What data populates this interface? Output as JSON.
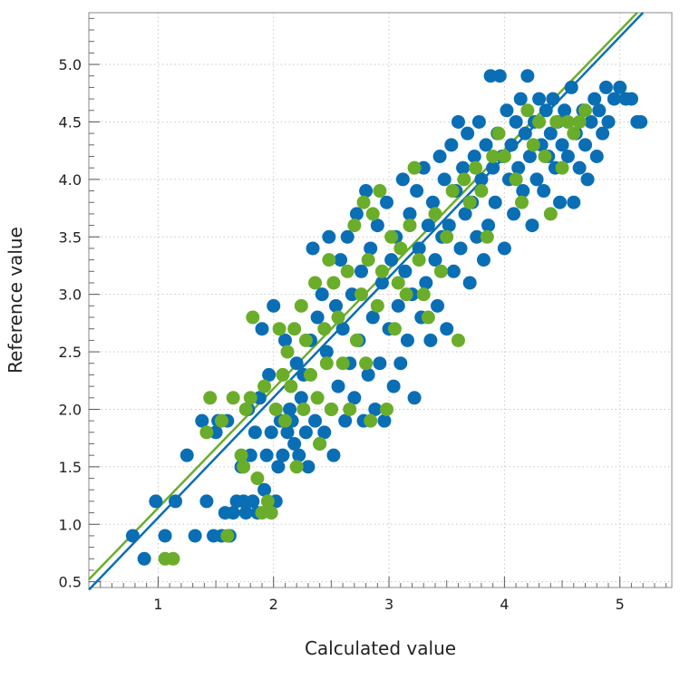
{
  "chart_data": {
    "type": "scatter",
    "title": "",
    "xlabel": "Calculated value",
    "ylabel": "Reference value",
    "xlim": [
      0.4,
      5.45
    ],
    "ylim": [
      0.45,
      5.45
    ],
    "xticks": [
      "1",
      "2",
      "3",
      "4",
      "5"
    ],
    "yticks": [
      "0.5",
      "1.0",
      "1.5",
      "2.0",
      "2.5",
      "3.0",
      "3.5",
      "4.0",
      "4.5",
      "5.0"
    ],
    "grid": true,
    "legend": "none",
    "colors": {
      "calibration": "#0a6eb5",
      "validation": "#6aad2a",
      "grid": "#c8c8c8",
      "frame": "#888888"
    },
    "fit_lines": [
      {
        "color": "#0a6eb5",
        "x": [
          0.4,
          5.2
        ],
        "y": [
          0.43,
          5.45
        ]
      },
      {
        "color": "#6aad2a",
        "x": [
          0.4,
          5.15
        ],
        "y": [
          0.52,
          5.45
        ]
      }
    ],
    "series": [
      {
        "color": "#0a6eb5",
        "points": [
          [
            0.78,
            0.9
          ],
          [
            0.88,
            0.7
          ],
          [
            0.98,
            1.2
          ],
          [
            1.06,
            0.9
          ],
          [
            1.15,
            1.2
          ],
          [
            1.25,
            1.6
          ],
          [
            1.32,
            0.9
          ],
          [
            1.38,
            1.9
          ],
          [
            1.42,
            1.2
          ],
          [
            1.48,
            0.9
          ],
          [
            1.5,
            1.8
          ],
          [
            1.52,
            1.9
          ],
          [
            1.55,
            0.9
          ],
          [
            1.58,
            1.1
          ],
          [
            1.6,
            1.9
          ],
          [
            1.62,
            0.9
          ],
          [
            1.65,
            1.1
          ],
          [
            1.68,
            1.2
          ],
          [
            1.72,
            1.5
          ],
          [
            1.74,
            1.2
          ],
          [
            1.76,
            1.1
          ],
          [
            1.78,
            2.0
          ],
          [
            1.8,
            1.6
          ],
          [
            1.82,
            1.2
          ],
          [
            1.84,
            1.8
          ],
          [
            1.86,
            1.1
          ],
          [
            1.88,
            2.1
          ],
          [
            1.9,
            2.7
          ],
          [
            1.92,
            1.3
          ],
          [
            1.94,
            1.6
          ],
          [
            1.96,
            2.3
          ],
          [
            1.98,
            1.8
          ],
          [
            2.0,
            2.9
          ],
          [
            2.02,
            1.2
          ],
          [
            2.04,
            1.5
          ],
          [
            2.06,
            1.9
          ],
          [
            2.08,
            1.6
          ],
          [
            2.1,
            2.6
          ],
          [
            2.12,
            1.8
          ],
          [
            2.14,
            2.0
          ],
          [
            2.16,
            1.9
          ],
          [
            2.18,
            1.7
          ],
          [
            2.2,
            2.4
          ],
          [
            2.22,
            1.6
          ],
          [
            2.24,
            2.1
          ],
          [
            2.26,
            2.3
          ],
          [
            2.28,
            1.8
          ],
          [
            2.3,
            1.5
          ],
          [
            2.32,
            2.6
          ],
          [
            2.34,
            3.4
          ],
          [
            2.36,
            1.9
          ],
          [
            2.38,
            2.8
          ],
          [
            2.4,
            1.7
          ],
          [
            2.42,
            3.0
          ],
          [
            2.44,
            1.8
          ],
          [
            2.46,
            2.5
          ],
          [
            2.48,
            3.5
          ],
          [
            2.5,
            2.0
          ],
          [
            2.52,
            1.6
          ],
          [
            2.54,
            2.9
          ],
          [
            2.56,
            2.2
          ],
          [
            2.58,
            3.3
          ],
          [
            2.6,
            2.7
          ],
          [
            2.62,
            1.9
          ],
          [
            2.64,
            3.5
          ],
          [
            2.66,
            2.4
          ],
          [
            2.68,
            3.0
          ],
          [
            2.7,
            2.1
          ],
          [
            2.72,
            3.7
          ],
          [
            2.74,
            2.6
          ],
          [
            2.76,
            3.2
          ],
          [
            2.78,
            1.9
          ],
          [
            2.8,
            3.9
          ],
          [
            2.82,
            2.3
          ],
          [
            2.84,
            3.4
          ],
          [
            2.86,
            2.8
          ],
          [
            2.88,
            2.0
          ],
          [
            2.9,
            3.6
          ],
          [
            2.92,
            2.4
          ],
          [
            2.94,
            3.1
          ],
          [
            2.96,
            1.9
          ],
          [
            2.98,
            3.8
          ],
          [
            3.0,
            2.7
          ],
          [
            3.02,
            3.3
          ],
          [
            3.04,
            2.2
          ],
          [
            3.06,
            3.5
          ],
          [
            3.08,
            2.9
          ],
          [
            3.1,
            2.4
          ],
          [
            3.12,
            4.0
          ],
          [
            3.14,
            3.2
          ],
          [
            3.16,
            2.6
          ],
          [
            3.18,
            3.7
          ],
          [
            3.2,
            3.0
          ],
          [
            3.22,
            2.1
          ],
          [
            3.24,
            3.9
          ],
          [
            3.26,
            3.4
          ],
          [
            3.28,
            2.8
          ],
          [
            3.3,
            4.1
          ],
          [
            3.32,
            3.1
          ],
          [
            3.34,
            3.6
          ],
          [
            3.36,
            2.6
          ],
          [
            3.38,
            3.8
          ],
          [
            3.4,
            3.3
          ],
          [
            3.42,
            2.9
          ],
          [
            3.44,
            4.2
          ],
          [
            3.46,
            3.5
          ],
          [
            3.48,
            4.0
          ],
          [
            3.5,
            2.7
          ],
          [
            3.52,
            3.6
          ],
          [
            3.54,
            4.3
          ],
          [
            3.56,
            3.2
          ],
          [
            3.58,
            3.9
          ],
          [
            3.6,
            4.5
          ],
          [
            3.62,
            3.4
          ],
          [
            3.64,
            4.1
          ],
          [
            3.66,
            3.7
          ],
          [
            3.68,
            4.4
          ],
          [
            3.7,
            3.1
          ],
          [
            3.72,
            3.8
          ],
          [
            3.74,
            4.2
          ],
          [
            3.76,
            3.5
          ],
          [
            3.78,
            4.5
          ],
          [
            3.8,
            4.0
          ],
          [
            3.82,
            3.3
          ],
          [
            3.84,
            4.3
          ],
          [
            3.86,
            3.6
          ],
          [
            3.88,
            4.9
          ],
          [
            3.9,
            4.1
          ],
          [
            3.92,
            3.8
          ],
          [
            3.94,
            4.4
          ],
          [
            3.96,
            4.9
          ],
          [
            3.98,
            4.2
          ],
          [
            4.0,
            3.4
          ],
          [
            4.02,
            4.6
          ],
          [
            4.04,
            4.0
          ],
          [
            4.06,
            4.3
          ],
          [
            4.08,
            3.7
          ],
          [
            4.1,
            4.5
          ],
          [
            4.12,
            4.1
          ],
          [
            4.14,
            4.7
          ],
          [
            4.16,
            3.9
          ],
          [
            4.18,
            4.4
          ],
          [
            4.2,
            4.9
          ],
          [
            4.22,
            4.2
          ],
          [
            4.24,
            3.6
          ],
          [
            4.26,
            4.5
          ],
          [
            4.28,
            4.0
          ],
          [
            4.3,
            4.7
          ],
          [
            4.32,
            4.3
          ],
          [
            4.34,
            3.9
          ],
          [
            4.36,
            4.6
          ],
          [
            4.38,
            4.2
          ],
          [
            4.4,
            4.4
          ],
          [
            4.42,
            4.7
          ],
          [
            4.44,
            4.1
          ],
          [
            4.46,
            4.5
          ],
          [
            4.48,
            3.8
          ],
          [
            4.5,
            4.3
          ],
          [
            4.52,
            4.6
          ],
          [
            4.55,
            4.2
          ],
          [
            4.58,
            4.8
          ],
          [
            4.6,
            3.8
          ],
          [
            4.62,
            4.4
          ],
          [
            4.65,
            4.1
          ],
          [
            4.68,
            4.6
          ],
          [
            4.7,
            4.3
          ],
          [
            4.72,
            4.0
          ],
          [
            4.75,
            4.5
          ],
          [
            4.78,
            4.7
          ],
          [
            4.8,
            4.2
          ],
          [
            4.82,
            4.6
          ],
          [
            4.85,
            4.4
          ],
          [
            4.88,
            4.8
          ],
          [
            4.9,
            4.5
          ],
          [
            4.95,
            4.7
          ],
          [
            5.0,
            4.8
          ],
          [
            5.05,
            4.7
          ],
          [
            5.1,
            4.7
          ],
          [
            5.15,
            4.5
          ],
          [
            5.18,
            4.5
          ]
        ]
      },
      {
        "color": "#6aad2a",
        "points": [
          [
            1.06,
            0.7
          ],
          [
            1.13,
            0.7
          ],
          [
            1.42,
            1.8
          ],
          [
            1.45,
            2.1
          ],
          [
            1.55,
            1.9
          ],
          [
            1.6,
            0.9
          ],
          [
            1.65,
            2.1
          ],
          [
            1.72,
            1.6
          ],
          [
            1.74,
            1.5
          ],
          [
            1.76,
            2.0
          ],
          [
            1.8,
            2.1
          ],
          [
            1.82,
            2.8
          ],
          [
            1.86,
            1.4
          ],
          [
            1.9,
            1.1
          ],
          [
            1.92,
            2.2
          ],
          [
            1.95,
            1.2
          ],
          [
            1.98,
            1.1
          ],
          [
            2.02,
            2.0
          ],
          [
            2.05,
            2.7
          ],
          [
            2.08,
            2.3
          ],
          [
            2.1,
            1.9
          ],
          [
            2.12,
            2.5
          ],
          [
            2.15,
            2.2
          ],
          [
            2.18,
            2.7
          ],
          [
            2.2,
            1.5
          ],
          [
            2.24,
            2.9
          ],
          [
            2.26,
            2.0
          ],
          [
            2.28,
            2.6
          ],
          [
            2.32,
            2.3
          ],
          [
            2.36,
            3.1
          ],
          [
            2.38,
            2.1
          ],
          [
            2.4,
            1.7
          ],
          [
            2.44,
            2.7
          ],
          [
            2.46,
            2.4
          ],
          [
            2.48,
            3.3
          ],
          [
            2.5,
            2.0
          ],
          [
            2.52,
            3.1
          ],
          [
            2.56,
            2.8
          ],
          [
            2.6,
            2.4
          ],
          [
            2.64,
            3.2
          ],
          [
            2.66,
            2.0
          ],
          [
            2.7,
            3.6
          ],
          [
            2.72,
            2.6
          ],
          [
            2.76,
            3.0
          ],
          [
            2.78,
            3.8
          ],
          [
            2.8,
            2.4
          ],
          [
            2.82,
            3.3
          ],
          [
            2.84,
            1.9
          ],
          [
            2.86,
            3.7
          ],
          [
            2.9,
            2.9
          ],
          [
            2.92,
            3.9
          ],
          [
            2.94,
            3.2
          ],
          [
            2.98,
            2.0
          ],
          [
            3.02,
            3.5
          ],
          [
            3.05,
            2.7
          ],
          [
            3.08,
            3.1
          ],
          [
            3.1,
            3.4
          ],
          [
            3.15,
            3.0
          ],
          [
            3.18,
            3.6
          ],
          [
            3.22,
            4.1
          ],
          [
            3.26,
            3.3
          ],
          [
            3.3,
            3.0
          ],
          [
            3.34,
            2.8
          ],
          [
            3.4,
            3.7
          ],
          [
            3.45,
            3.2
          ],
          [
            3.5,
            3.5
          ],
          [
            3.55,
            3.9
          ],
          [
            3.6,
            2.6
          ],
          [
            3.65,
            4.0
          ],
          [
            3.7,
            3.8
          ],
          [
            3.75,
            4.1
          ],
          [
            3.8,
            3.9
          ],
          [
            3.85,
            3.5
          ],
          [
            3.9,
            4.2
          ],
          [
            3.95,
            4.4
          ],
          [
            4.0,
            4.2
          ],
          [
            4.1,
            4.0
          ],
          [
            4.15,
            3.8
          ],
          [
            4.2,
            4.6
          ],
          [
            4.25,
            4.3
          ],
          [
            4.3,
            4.5
          ],
          [
            4.35,
            4.2
          ],
          [
            4.4,
            3.7
          ],
          [
            4.45,
            4.5
          ],
          [
            4.5,
            4.1
          ],
          [
            4.55,
            4.5
          ],
          [
            4.6,
            4.4
          ],
          [
            4.65,
            4.5
          ],
          [
            4.7,
            4.6
          ]
        ]
      }
    ]
  }
}
